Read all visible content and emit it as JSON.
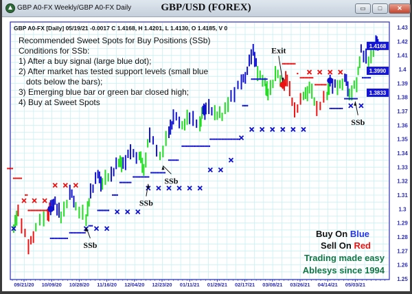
{
  "window": {
    "title": "GBP A0-FX Weekly/GBP A0-FX Daily",
    "chart_title": "GBP/USD (FOREX)",
    "buttons": {
      "minimize": "▭",
      "maximize": "□",
      "close": "✕"
    }
  },
  "info_line": "GBP A0-FX [Daily] 05/19/21 -0.0017 C 1.4168, H 1.4201, L 1.4130, O 1.4185, V 0",
  "notes": [
    "Recommended Sweet Spots for Buy Positions (SSb)",
    "Conditions for SSb:",
    "1) After a buy signal (large blue dot);",
    "2) After market has tested support levels (small blue",
    "dots below the bars);",
    "3) Emerging blue bar or green bar closed high;",
    "4) Buy at Sweet Spots"
  ],
  "legend": {
    "buy_prefix": "Buy On ",
    "buy_word": "Blue",
    "sell_prefix": "Sell On ",
    "sell_word": "Red",
    "tagline": "Trading made easy",
    "brand": "Ablesys since 1994"
  },
  "colors": {
    "blue": "#1010d0",
    "green": "#22dd22",
    "red": "#ee1111",
    "grid": "#c8f0f4",
    "axis_text": "#2a2ab8",
    "brand_green": "#117744"
  },
  "chart_data": {
    "type": "bar",
    "title": "GBP/USD (FOREX)",
    "ylim": [
      1.25,
      1.43
    ],
    "yticks": [
      1.43,
      1.42,
      1.41,
      1.4,
      1.39,
      1.38,
      1.37,
      1.36,
      1.35,
      1.34,
      1.33,
      1.32,
      1.31,
      1.3,
      1.29,
      1.28,
      1.27,
      1.26,
      1.25
    ],
    "xticks": [
      "09/21/20",
      "10/09/20",
      "10/28/20",
      "11/16/20",
      "12/04/20",
      "12/23/20",
      "01/11/21",
      "01/29/21",
      "02/17/21",
      "03/08/21",
      "03/26/21",
      "04/14/21",
      "05/03/21"
    ],
    "grid": true,
    "price_tags": [
      "1.4168",
      "1.3990",
      "1.3833"
    ],
    "closes": [
      [
        "2020-09-14",
        1.286,
        "green"
      ],
      [
        "2020-09-17",
        1.299,
        "red"
      ],
      [
        "2020-09-24",
        1.273,
        "red"
      ],
      [
        "2020-09-29",
        1.287,
        "green"
      ],
      [
        "2020-10-07",
        1.296,
        "red"
      ],
      [
        "2020-10-09",
        1.301,
        "blue"
      ],
      [
        "2020-10-12",
        1.306,
        "blue"
      ],
      [
        "2020-10-16",
        1.294,
        "green"
      ],
      [
        "2020-10-22",
        1.312,
        "blue"
      ],
      [
        "2020-10-26",
        1.302,
        "green"
      ],
      [
        "2020-11-02",
        1.292,
        "green"
      ],
      [
        "2020-11-05",
        1.313,
        "blue"
      ],
      [
        "2020-11-10",
        1.325,
        "blue"
      ],
      [
        "2020-11-13",
        1.318,
        "green"
      ],
      [
        "2020-11-19",
        1.325,
        "blue"
      ],
      [
        "2020-11-24",
        1.333,
        "green"
      ],
      [
        "2020-11-27",
        1.333,
        "blue"
      ],
      [
        "2020-12-02",
        1.341,
        "blue"
      ],
      [
        "2020-12-08",
        1.338,
        "green"
      ],
      [
        "2020-12-11",
        1.328,
        "green"
      ],
      [
        "2020-12-15",
        1.353,
        "blue"
      ],
      [
        "2020-12-22",
        1.338,
        "green"
      ],
      [
        "2020-12-28",
        1.355,
        "blue"
      ],
      [
        "2020-12-31",
        1.366,
        "blue"
      ],
      [
        "2021-01-06",
        1.36,
        "green"
      ],
      [
        "2021-01-11",
        1.365,
        "blue"
      ],
      [
        "2021-01-18",
        1.361,
        "green"
      ],
      [
        "2021-01-20",
        1.371,
        "blue"
      ],
      [
        "2021-01-22",
        1.372,
        "blue"
      ],
      [
        "2021-01-28",
        1.369,
        "green"
      ],
      [
        "2021-02-02",
        1.366,
        "green"
      ],
      [
        "2021-02-08",
        1.381,
        "blue"
      ],
      [
        "2021-02-15",
        1.391,
        "blue"
      ],
      [
        "2021-02-19",
        1.399,
        "blue"
      ],
      [
        "2021-02-23",
        1.414,
        "blue"
      ],
      [
        "2021-02-26",
        1.397,
        "green"
      ],
      [
        "2021-03-03",
        1.391,
        "green"
      ],
      [
        "2021-03-05",
        1.382,
        "green"
      ],
      [
        "2021-03-10",
        1.397,
        "green"
      ],
      [
        "2021-03-15",
        1.389,
        "red"
      ],
      [
        "2021-03-18",
        1.392,
        "red"
      ],
      [
        "2021-03-23",
        1.371,
        "red"
      ],
      [
        "2021-03-29",
        1.381,
        "green"
      ],
      [
        "2021-04-02",
        1.387,
        "green"
      ],
      [
        "2021-04-07",
        1.372,
        "red"
      ],
      [
        "2021-04-14",
        1.381,
        "green"
      ],
      [
        "2021-04-16",
        1.392,
        "blue"
      ],
      [
        "2021-04-21",
        1.387,
        "green"
      ],
      [
        "2021-04-26",
        1.394,
        "blue"
      ],
      [
        "2021-04-29",
        1.382,
        "green"
      ],
      [
        "2021-05-04",
        1.389,
        "green"
      ],
      [
        "2021-05-07",
        1.415,
        "blue"
      ],
      [
        "2021-05-12",
        1.405,
        "green"
      ],
      [
        "2021-05-17",
        1.419,
        "blue"
      ],
      [
        "2021-05-19",
        1.4168,
        "blue"
      ]
    ],
    "red_x": [
      [
        "2020-09-21",
        1.306
      ],
      [
        "2020-09-28",
        1.306
      ],
      [
        "2020-10-05",
        1.306
      ],
      [
        "2020-10-12",
        1.317
      ],
      [
        "2020-10-19",
        1.317
      ],
      [
        "2020-10-26",
        1.317
      ],
      [
        "2021-04-02",
        1.398
      ],
      [
        "2021-04-09",
        1.398
      ],
      [
        "2021-04-16",
        1.398
      ],
      [
        "2021-04-23",
        1.398
      ]
    ],
    "blue_x": [
      [
        "2020-09-14",
        1.286
      ],
      [
        "2020-11-02",
        1.286
      ],
      [
        "2020-11-09",
        1.286
      ],
      [
        "2020-11-16",
        1.286
      ],
      [
        "2020-11-23",
        1.298
      ],
      [
        "2020-11-30",
        1.298
      ],
      [
        "2020-12-07",
        1.298
      ],
      [
        "2020-12-14",
        1.315
      ],
      [
        "2020-12-21",
        1.315
      ],
      [
        "2020-12-28",
        1.315
      ],
      [
        "2021-01-04",
        1.315
      ],
      [
        "2021-01-11",
        1.315
      ],
      [
        "2021-01-18",
        1.315
      ],
      [
        "2021-01-25",
        1.328
      ],
      [
        "2021-02-01",
        1.328
      ],
      [
        "2021-02-08",
        1.335
      ],
      [
        "2021-02-15",
        1.351
      ],
      [
        "2021-02-22",
        1.357
      ],
      [
        "2021-03-01",
        1.357
      ],
      [
        "2021-03-08",
        1.357
      ],
      [
        "2021-03-15",
        1.357
      ],
      [
        "2021-03-22",
        1.357
      ],
      [
        "2021-03-29",
        1.357
      ],
      [
        "2021-04-30",
        1.374
      ],
      [
        "2021-05-07",
        1.374
      ],
      [
        "2021-05-14",
        1.383
      ]
    ],
    "support_dots": [
      [
        "2020-10-09",
        "2020-10-21",
        1.279
      ],
      [
        "2020-10-22",
        "2020-11-02",
        1.283
      ],
      [
        "2020-11-04",
        "2020-11-07",
        1.288
      ],
      [
        "2020-11-10",
        "2020-11-18",
        1.299
      ],
      [
        "2020-11-20",
        "2020-11-24",
        1.31
      ],
      [
        "2020-11-25",
        "2020-12-03",
        1.319
      ],
      [
        "2020-12-04",
        "2020-12-15",
        1.323
      ],
      [
        "2020-12-16",
        "2020-12-26",
        1.326
      ],
      [
        "2020-12-28",
        "2021-01-04",
        1.335
      ],
      [
        "2021-01-06",
        "2021-01-25",
        1.345
      ],
      [
        "2021-01-25",
        "2021-02-14",
        1.35
      ],
      [
        "2021-02-16",
        "2021-02-20",
        1.374
      ],
      [
        "2021-02-22",
        "2021-03-05",
        1.393
      ],
      [
        "2021-04-16",
        "2021-04-25",
        1.372
      ],
      [
        "2021-04-26",
        "2021-05-05",
        1.379
      ],
      [
        "2021-05-08",
        "2021-05-14",
        1.394
      ],
      [
        "2021-05-16",
        "2021-05-18",
        1.399
      ]
    ],
    "resistance_dots": [
      [
        "2020-09-10",
        "2020-09-14",
        1.329
      ],
      [
        "2020-09-14",
        "2020-09-20",
        1.322
      ],
      [
        "2020-09-22",
        "2020-09-23",
        1.31
      ],
      [
        "2020-09-24",
        "2020-10-07",
        1.299
      ],
      [
        "2021-03-15",
        "2021-03-24",
        1.404
      ],
      [
        "2021-03-25",
        "2021-03-25",
        1.397
      ],
      [
        "2021-03-27",
        "2021-04-05",
        1.394
      ],
      [
        "2021-04-06",
        "2021-04-14",
        1.389
      ]
    ],
    "signals": [
      {
        "type": "buy",
        "date": "2020-10-09",
        "price": 1.3
      },
      {
        "type": "sell",
        "date": "2021-03-15",
        "price": 1.389
      },
      {
        "type": "buy",
        "date": "2021-04-16",
        "price": 1.392
      }
    ],
    "annotations": [
      {
        "text": "SSb",
        "date": "2020-11-02",
        "price": 1.287
      },
      {
        "text": "SSb",
        "date": "2020-12-14",
        "price": 1.318
      },
      {
        "text": "SSb",
        "date": "2020-12-24",
        "price": 1.331
      },
      {
        "text": "Exit",
        "date": "2021-03-15",
        "price": 1.391
      },
      {
        "text": "SSb",
        "date": "2021-05-03",
        "price": 1.377
      }
    ]
  }
}
